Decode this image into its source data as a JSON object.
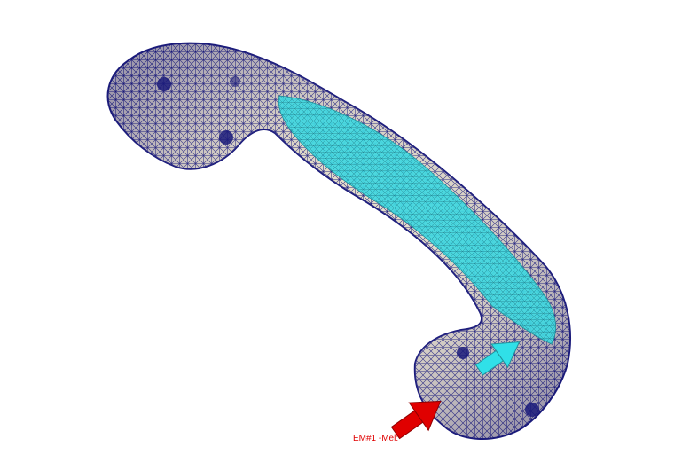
{
  "viewport": {
    "callout_label": "EM#1 -Mel:",
    "callout_color": "#e00000"
  },
  "model": {
    "mesh_line_color": "#1a1a7a",
    "mesh_fill_color": "#e8e0c8",
    "surface_highlight_color": "#40d8e0"
  },
  "arrows": {
    "force_color": "#e00000",
    "direction_color": "#30e0e8"
  },
  "icons": {
    "force": "arrow-force-icon",
    "direction": "arrow-direction-icon"
  }
}
